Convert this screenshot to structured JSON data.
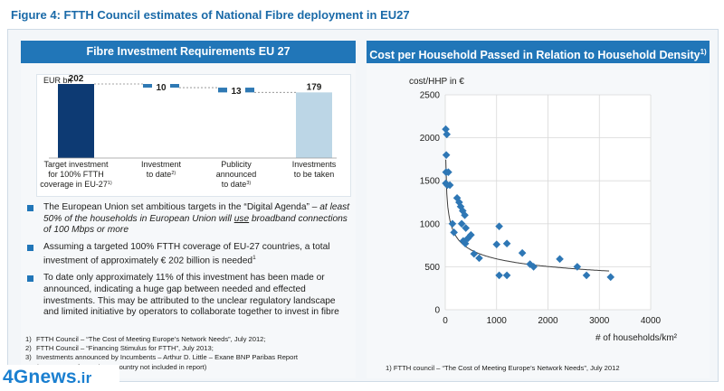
{
  "figure_title": "Figure 4: FTTH Council estimates of National Fibre deployment in EU27",
  "left_panel": {
    "header": "Fibre Investment Requirements EU 27",
    "unit_label": "EUR bn",
    "bullets": [
      {
        "text": "The European Union set ambitious targets in the “Digital Agenda” –",
        "emphasis": "at least 50% of the households in European Union will",
        "emphasis_underlined": "use",
        "emphasis_end": "broadband connections of 100 Mbps or more"
      },
      {
        "text": "Assuming a targeted 100% FTTH coverage of EU-27 countries, a total investment of approximately € 202 billion is needed",
        "sup": "1"
      },
      {
        "text": "To date only approximately 11% of this investment has been made or announced, indicating a huge gap between needed and effected investments. This may be attributed to the unclear regulatory landscape and limited initiative by operators to collaborate together to invest in fibre"
      }
    ],
    "footnotes": [
      {
        "num": "1)",
        "text": "FTTH Council – “The Cost of Meeting Europe’s Network Needs”, July 2012;"
      },
      {
        "num": "2)",
        "text": "FTTH Council – “Financing Stimulus for FTTH”, July 2013;"
      },
      {
        "num": "3)",
        "text": "Investments announced by Incumbents – Arthur D. Little – Exane BNP Paribas Report"
      },
      {
        "num": "",
        "text": "(Investments for each EU country not included in report)"
      }
    ]
  },
  "right_panel": {
    "header": "Cost per Household Passed in Relation to Household Density",
    "header_sup": "1)",
    "footnote": "1) FTTH council – “The Cost of Meeting Europe’s Network Needs”, July 2012"
  },
  "chart_data": [
    {
      "type": "bar",
      "subtype": "waterfall",
      "title": "Fibre Investment Requirements EU 27",
      "ylabel": "EUR bn",
      "categories": [
        [
          "Target investment",
          "for 100% FTTH",
          "coverage in EU-27"
        ],
        [
          "Investment",
          "to date"
        ],
        [
          "Publicity",
          "announced",
          "to date"
        ],
        [
          "Investments",
          "to be taken"
        ]
      ],
      "category_sups": [
        "1)",
        "2)",
        "3)",
        ""
      ],
      "values": [
        202,
        10,
        13,
        179
      ],
      "value_labels": [
        "202",
        "10",
        "13",
        "179"
      ],
      "colors": [
        "#0d3a73",
        "#2f79b4",
        "#2f79b4",
        "#bcd6e6"
      ]
    },
    {
      "type": "scatter",
      "title": "Cost per Household Passed in Relation to Household Density",
      "ylabel": "cost/HHP in €",
      "xlabel": "# of households/km²",
      "xlim": [
        0,
        4000
      ],
      "ylim": [
        0,
        2500
      ],
      "xticks": [
        0,
        1000,
        2000,
        3000,
        4000
      ],
      "yticks": [
        0,
        500,
        1000,
        1500,
        2000,
        2500
      ],
      "grid": true,
      "marker_color": "#2e77b5",
      "points": [
        [
          10,
          2100
        ],
        [
          30,
          2040
        ],
        [
          20,
          1800
        ],
        [
          15,
          1600
        ],
        [
          60,
          1600
        ],
        [
          10,
          1470
        ],
        [
          40,
          1450
        ],
        [
          90,
          1450
        ],
        [
          140,
          1000
        ],
        [
          170,
          900
        ],
        [
          230,
          1300
        ],
        [
          270,
          1250
        ],
        [
          300,
          1200
        ],
        [
          340,
          1150
        ],
        [
          380,
          1100
        ],
        [
          320,
          1000
        ],
        [
          400,
          950
        ],
        [
          350,
          800
        ],
        [
          390,
          770
        ],
        [
          440,
          830
        ],
        [
          500,
          870
        ],
        [
          560,
          650
        ],
        [
          660,
          600
        ],
        [
          1000,
          760
        ],
        [
          1050,
          970
        ],
        [
          1200,
          770
        ],
        [
          1050,
          400
        ],
        [
          1200,
          400
        ],
        [
          1500,
          660
        ],
        [
          1650,
          530
        ],
        [
          1720,
          500
        ],
        [
          2230,
          590
        ],
        [
          2570,
          500
        ],
        [
          2750,
          400
        ],
        [
          3220,
          380
        ]
      ],
      "trendline": "power-fit"
    }
  ]
}
